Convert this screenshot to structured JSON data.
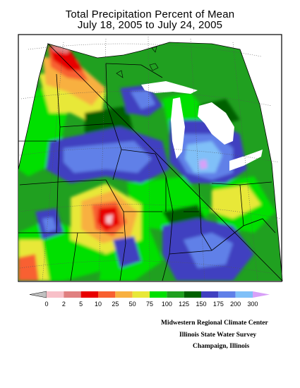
{
  "title": {
    "line1": "Total Precipitation Percent of Mean",
    "line2": "July 18, 2005 to July 24, 2005"
  },
  "legend": {
    "ticks": [
      "0",
      "2",
      "5",
      "10",
      "25",
      "50",
      "75",
      "100",
      "125",
      "150",
      "175",
      "200",
      "300"
    ],
    "colors": [
      "#f8c0c8",
      "#e08080",
      "#e80000",
      "#f86030",
      "#f8b040",
      "#e8e838",
      "#00e000",
      "#20a020",
      "#006000",
      "#4040c0",
      "#6080e8",
      "#80c0f8"
    ],
    "below_color": "#c0c0c0",
    "above_color": "#d8a0f8"
  },
  "credits": {
    "line1": "Midwestern Regional Climate Center",
    "line2": "Illinois State Water Survey",
    "line3": "Champaign, Illinois"
  }
}
